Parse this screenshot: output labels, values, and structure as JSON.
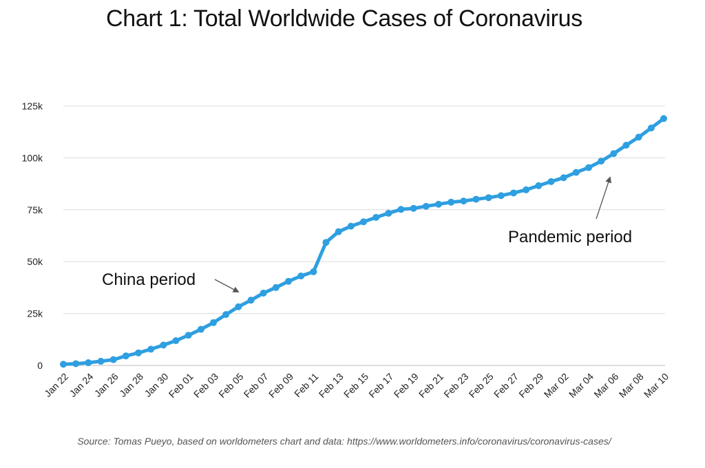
{
  "chart_data": {
    "type": "line",
    "title": "Chart 1: Total Worldwide Cases of Coronavirus",
    "source": "Source: Tomas Pueyo, based on worldometers chart and data: https://www.worldometers.info/coronavirus/coronavirus-cases/",
    "xlabel": "",
    "ylabel": "",
    "ylim": [
      0,
      125000
    ],
    "yticks": [
      0,
      25000,
      50000,
      75000,
      100000,
      125000
    ],
    "ytick_labels": [
      "0",
      "25k",
      "50k",
      "75k",
      "100k",
      "125k"
    ],
    "xtick_labels": [
      "Jan 22",
      "Jan 24",
      "Jan 26",
      "Jan 28",
      "Jan 30",
      "Feb 01",
      "Feb 03",
      "Feb 05",
      "Feb 07",
      "Feb 09",
      "Feb 11",
      "Feb 13",
      "Feb 15",
      "Feb 17",
      "Feb 19",
      "Feb 21",
      "Feb 23",
      "Feb 25",
      "Feb 27",
      "Feb 29",
      "Mar 02",
      "Mar 04",
      "Mar 06",
      "Mar 08",
      "Mar 10"
    ],
    "grid": true,
    "line_color": "#2e9fe0",
    "series": [
      {
        "values": [
          580,
          845,
          1317,
          2015,
          2800,
          4581,
          6058,
          7813,
          9823,
          11950,
          14553,
          17391,
          20630,
          24545,
          28266,
          31439,
          34876,
          37552,
          40553,
          43099,
          45134,
          59287,
          64438,
          67100,
          69197,
          71329,
          73332,
          75184,
          75700,
          76677,
          77673,
          78651,
          79205,
          80087,
          80828,
          81820,
          83112,
          84615,
          86604,
          88585,
          90443,
          93016,
          95314,
          98425,
          102050,
          106099,
          109991,
          114381,
          118948
        ]
      }
    ],
    "annotations": [
      {
        "text": "China period"
      },
      {
        "text": "Pandemic period"
      }
    ]
  }
}
